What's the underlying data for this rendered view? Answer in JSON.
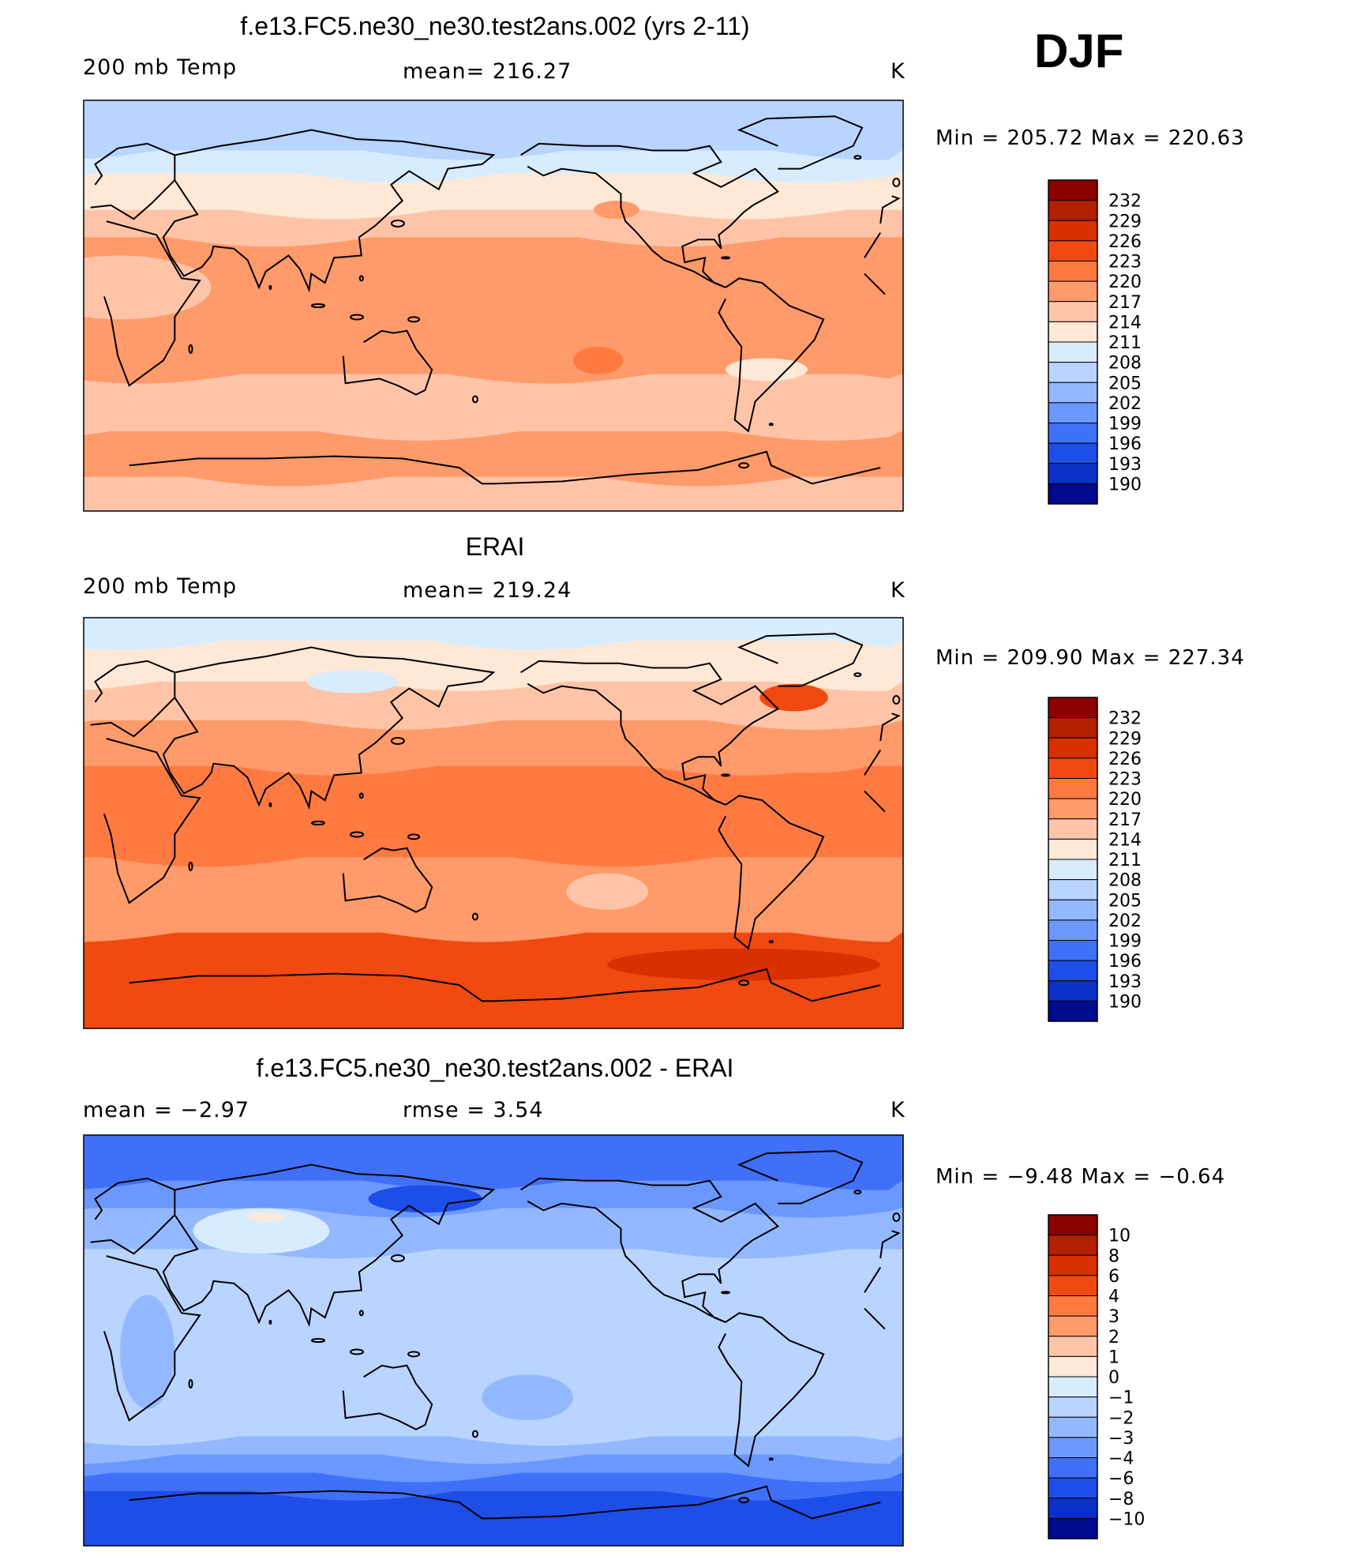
{
  "season": "DJF",
  "chart_data": [
    {
      "type": "heatmap",
      "title": "f.e13.FC5.ne30_ne30.test2ans.002 (yrs 2-11)",
      "left_label": "200 mb Temp",
      "center_label": "mean=  216.27",
      "unit": "K",
      "minmax": "Min  =  205.72  Max  =  220.63",
      "mean": 216.27,
      "min": 205.72,
      "max": 220.63,
      "colorbar_labels": [
        "232",
        "229",
        "226",
        "223",
        "220",
        "217",
        "214",
        "211",
        "208",
        "205",
        "202",
        "199",
        "196",
        "193",
        "190"
      ],
      "colorbar_colors": [
        "#8b0000",
        "#b22000",
        "#d93000",
        "#f04a10",
        "#ff7a40",
        "#ff9a6a",
        "#ffc4a8",
        "#ffe8d6",
        "#d8ecff",
        "#b8d4ff",
        "#94b8ff",
        "#6a98ff",
        "#4070f8",
        "#1e4ee8",
        "#0a30c8",
        "#000a8c"
      ],
      "bands": [
        {
          "lat": 90,
          "level": 9
        },
        {
          "lat": 75,
          "level": 9
        },
        {
          "lat": 68,
          "level": 8
        },
        {
          "lat": 58,
          "level": 7
        },
        {
          "lat": 42,
          "level": 6
        },
        {
          "lat": 30,
          "level": 5
        },
        {
          "lat": 0,
          "level": 5
        },
        {
          "lat": -30,
          "level": 6
        },
        {
          "lat": -45,
          "level": 6
        },
        {
          "lat": -55,
          "level": 5
        },
        {
          "lat": -65,
          "level": 5
        },
        {
          "lat": -75,
          "level": 6
        },
        {
          "lat": -90,
          "level": 6
        }
      ],
      "blobs": [
        {
          "lon": -134,
          "lat": -24,
          "rx": 11,
          "ry": 6,
          "level": 4
        },
        {
          "lon": 16,
          "lat": 8,
          "rx": 40,
          "ry": 14,
          "level": 6
        },
        {
          "lon": -60,
          "lat": -28,
          "rx": 18,
          "ry": 5,
          "level": 7
        },
        {
          "lon": -78,
          "lat": 48,
          "rx": 25,
          "ry": 5,
          "level": 7
        },
        {
          "lon": -126,
          "lat": 42,
          "rx": 10,
          "ry": 4,
          "level": 5
        },
        {
          "lon": -170,
          "lat": -62,
          "rx": 10,
          "ry": 3,
          "level": 5
        }
      ]
    },
    {
      "type": "heatmap",
      "title": "ERAI",
      "left_label": "200 mb Temp",
      "center_label": "mean=  219.24",
      "unit": "K",
      "minmax": "Min  =  209.90  Max  =  227.34",
      "mean": 219.24,
      "min": 209.9,
      "max": 227.34,
      "colorbar_labels": [
        "232",
        "229",
        "226",
        "223",
        "220",
        "217",
        "214",
        "211",
        "208",
        "205",
        "202",
        "199",
        "196",
        "193",
        "190"
      ],
      "colorbar_colors": [
        "#8b0000",
        "#b22000",
        "#d93000",
        "#f04a10",
        "#ff7a40",
        "#ff9a6a",
        "#ffc4a8",
        "#ffe8d6",
        "#d8ecff",
        "#b8d4ff",
        "#94b8ff",
        "#6a98ff",
        "#4070f8",
        "#1e4ee8",
        "#0a30c8",
        "#000a8c"
      ],
      "bands": [
        {
          "lat": 90,
          "level": 8
        },
        {
          "lat": 80,
          "level": 7
        },
        {
          "lat": 62,
          "level": 6
        },
        {
          "lat": 45,
          "level": 5
        },
        {
          "lat": 25,
          "level": 4
        },
        {
          "lat": 0,
          "level": 4
        },
        {
          "lat": -15,
          "level": 5
        },
        {
          "lat": -38,
          "level": 5
        },
        {
          "lat": -48,
          "level": 3
        },
        {
          "lat": -75,
          "level": 3
        },
        {
          "lat": -90,
          "level": 3
        }
      ],
      "blobs": [
        {
          "lon": -70,
          "lat": -62,
          "rx": 60,
          "ry": 7,
          "level": 2
        },
        {
          "lon": -130,
          "lat": -30,
          "rx": 18,
          "ry": 8,
          "level": 6
        },
        {
          "lon": -48,
          "lat": 55,
          "rx": 15,
          "ry": 6,
          "level": 3
        },
        {
          "lon": 118,
          "lat": 62,
          "rx": 20,
          "ry": 5,
          "level": 8
        },
        {
          "lon": -40,
          "lat": 28,
          "rx": 28,
          "ry": 6,
          "level": 5
        }
      ]
    },
    {
      "type": "heatmap",
      "title": "f.e13.FC5.ne30_ne30.test2ans.002 - ERAI",
      "left_label": "mean  =     −2.97",
      "center_label": "rmse  =     3.54",
      "unit": "K",
      "minmax": "Min  =    −9.48  Max  =    −0.64",
      "mean": -2.97,
      "rmse": 3.54,
      "min": -9.48,
      "max": -0.64,
      "colorbar_labels": [
        "10",
        "8",
        "6",
        "4",
        "3",
        "2",
        "1",
        "0",
        "−1",
        "−2",
        "−3",
        "−4",
        "−6",
        "−8",
        "−10"
      ],
      "colorbar_colors": [
        "#8b0000",
        "#b22000",
        "#d93000",
        "#f04a10",
        "#ff7a40",
        "#ff9a6a",
        "#ffc4a8",
        "#ffe8d6",
        "#d8ecff",
        "#b8d4ff",
        "#94b8ff",
        "#6a98ff",
        "#4070f8",
        "#1e4ee8",
        "#0a30c8",
        "#000a8c"
      ],
      "bands": [
        {
          "lat": 90,
          "level": 12
        },
        {
          "lat": 78,
          "level": 12
        },
        {
          "lat": 70,
          "level": 11
        },
        {
          "lat": 58,
          "level": 10
        },
        {
          "lat": 40,
          "level": 9
        },
        {
          "lat": 10,
          "level": 9
        },
        {
          "lat": -30,
          "level": 9
        },
        {
          "lat": -42,
          "level": 10
        },
        {
          "lat": -50,
          "level": 11
        },
        {
          "lat": -58,
          "level": 12
        },
        {
          "lat": -66,
          "level": 13
        },
        {
          "lat": -90,
          "level": 13
        }
      ],
      "blobs": [
        {
          "lon": 150,
          "lat": 62,
          "rx": 25,
          "ry": 6,
          "level": 13
        },
        {
          "lon": 78,
          "lat": 48,
          "rx": 30,
          "ry": 10,
          "level": 8
        },
        {
          "lon": 80,
          "lat": 54,
          "rx": 8,
          "ry": 2,
          "level": 7
        },
        {
          "lon": -100,
          "lat": 48,
          "rx": 35,
          "ry": 8,
          "level": 10
        },
        {
          "lon": -165,
          "lat": -25,
          "rx": 20,
          "ry": 10,
          "level": 10
        },
        {
          "lon": 28,
          "lat": -5,
          "rx": 12,
          "ry": 25,
          "level": 10
        }
      ]
    }
  ]
}
